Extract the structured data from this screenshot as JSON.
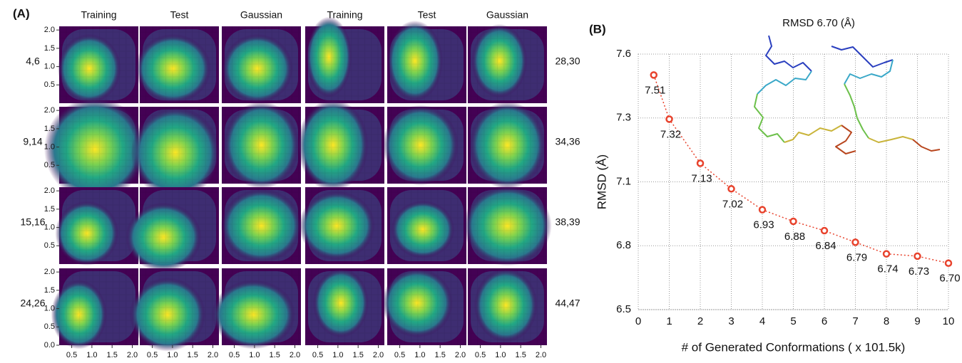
{
  "panel_a": {
    "label": "(A)",
    "columns": [
      "Training",
      "Test",
      "Gaussian",
      "Training",
      "Test",
      "Gaussian"
    ],
    "rows_left": [
      "4,6",
      "9,14",
      "15,16",
      "24,26"
    ],
    "rows_right": [
      "28,30",
      "34,36",
      "38,39",
      "44,47"
    ],
    "xlim": [
      0.19,
      2.15
    ],
    "xticks": [
      0.5,
      {
        "value": 1,
        "label": "1.0"
      },
      1.5,
      {
        "value": 2,
        "label": "2.0"
      }
    ],
    "ylim": [
      0,
      2.1
    ],
    "yticks": [
      {
        "value": 0,
        "label": "0.0"
      },
      0.5,
      {
        "value": 1,
        "label": "1.0"
      },
      1.5,
      {
        "value": 2,
        "label": "2.0"
      }
    ]
  },
  "chart_data": {
    "type": "line",
    "label": "(B)",
    "annotation": "RMSD 6.70 (Å)",
    "x_label": "# of Generated Conformations ( x 101.5k)",
    "y_label": "RMSD (Å)",
    "x": [
      0.5,
      1,
      2,
      3,
      4,
      5,
      6,
      7,
      8,
      9,
      10
    ],
    "series": [
      {
        "color": "#e8432d",
        "values": [
          7.51,
          7.32,
          7.13,
          7.02,
          6.93,
          6.88,
          6.84,
          6.79,
          6.74,
          6.73,
          6.7
        ],
        "value_labels": [
          "7.51",
          "7.32",
          "7.13",
          "7.02",
          "6.93",
          "6.88",
          "6.84",
          "6.79",
          "6.74",
          "6.73",
          "6.70"
        ]
      }
    ],
    "xlim": [
      0,
      10
    ],
    "ylim": [
      6.5,
      7.6
    ],
    "xticks": [
      0,
      1,
      2,
      3,
      4,
      5,
      6,
      7,
      8,
      9,
      10
    ],
    "yticks": [
      6.5,
      {
        "value": 6.775,
        "label": "6.8"
      },
      {
        "value": 7.05,
        "label": "7.1"
      },
      {
        "value": 7.325,
        "label": "7.3"
      },
      7.6
    ],
    "grid": true
  }
}
